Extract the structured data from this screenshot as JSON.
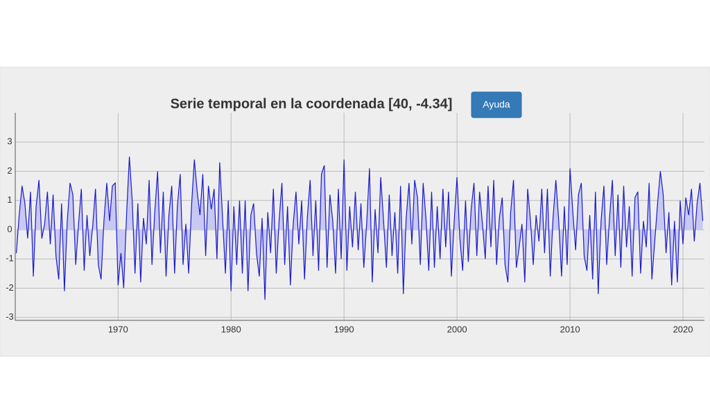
{
  "button": {
    "label": "Ayuda"
  },
  "chart_data": {
    "type": "area",
    "title": "Serie temporal en la coordenada [40, -4.34]",
    "color": "#1a1acc",
    "fill": "#c8c8f4",
    "grid": true,
    "xlim": [
      1960.9,
      2021.9
    ],
    "ylim": [
      -3.1,
      4
    ],
    "xticks": [
      1970,
      1980,
      1990,
      2000,
      2010,
      2020
    ],
    "yticks": [
      -3,
      -2,
      -1,
      0,
      1,
      2,
      3
    ],
    "x": [
      1961,
      1961.25,
      1961.5,
      1961.75,
      1962,
      1962.25,
      1962.5,
      1962.75,
      1963,
      1963.25,
      1963.5,
      1963.75,
      1964,
      1964.25,
      1964.5,
      1964.75,
      1965,
      1965.25,
      1965.5,
      1965.75,
      1966,
      1966.25,
      1966.5,
      1966.75,
      1967,
      1967.25,
      1967.5,
      1967.75,
      1968,
      1968.25,
      1968.5,
      1968.75,
      1969,
      1969.25,
      1969.5,
      1969.75,
      1970,
      1970.25,
      1970.5,
      1970.75,
      1971,
      1971.25,
      1971.5,
      1971.75,
      1972,
      1972.25,
      1972.5,
      1972.75,
      1973,
      1973.25,
      1973.5,
      1973.75,
      1974,
      1974.25,
      1974.5,
      1974.75,
      1975,
      1975.25,
      1975.5,
      1975.75,
      1976,
      1976.25,
      1976.5,
      1976.75,
      1977,
      1977.25,
      1977.5,
      1977.75,
      1978,
      1978.25,
      1978.5,
      1978.75,
      1979,
      1979.25,
      1979.5,
      1979.75,
      1980,
      1980.25,
      1980.5,
      1980.75,
      1981,
      1981.25,
      1981.5,
      1981.75,
      1982,
      1982.25,
      1982.5,
      1982.75,
      1983,
      1983.25,
      1983.5,
      1983.75,
      1984,
      1984.25,
      1984.5,
      1984.75,
      1985,
      1985.25,
      1985.5,
      1985.75,
      1986,
      1986.25,
      1986.5,
      1986.75,
      1987,
      1987.25,
      1987.5,
      1987.75,
      1988,
      1988.25,
      1988.5,
      1988.75,
      1989,
      1989.25,
      1989.5,
      1989.75,
      1990,
      1990.25,
      1990.5,
      1990.75,
      1991,
      1991.25,
      1991.5,
      1991.75,
      1992,
      1992.25,
      1992.5,
      1992.75,
      1993,
      1993.25,
      1993.5,
      1993.75,
      1994,
      1994.25,
      1994.5,
      1994.75,
      1995,
      1995.25,
      1995.5,
      1995.75,
      1996,
      1996.25,
      1996.5,
      1996.75,
      1997,
      1997.25,
      1997.5,
      1997.75,
      1998,
      1998.25,
      1998.5,
      1998.75,
      1999,
      1999.25,
      1999.5,
      1999.75,
      2000,
      2000.25,
      2000.5,
      2000.75,
      2001,
      2001.25,
      2001.5,
      2001.75,
      2002,
      2002.25,
      2002.5,
      2002.75,
      2003,
      2003.25,
      2003.5,
      2003.75,
      2004,
      2004.25,
      2004.5,
      2004.75,
      2005,
      2005.25,
      2005.5,
      2005.75,
      2006,
      2006.25,
      2006.5,
      2006.75,
      2007,
      2007.25,
      2007.5,
      2007.75,
      2008,
      2008.25,
      2008.5,
      2008.75,
      2009,
      2009.25,
      2009.5,
      2009.75,
      2010,
      2010.25,
      2010.5,
      2010.75,
      2011,
      2011.25,
      2011.5,
      2011.75,
      2012,
      2012.25,
      2012.5,
      2012.75,
      2013,
      2013.25,
      2013.5,
      2013.75,
      2014,
      2014.25,
      2014.5,
      2014.75,
      2015,
      2015.25,
      2015.5,
      2015.75,
      2016,
      2016.25,
      2016.5,
      2016.75,
      2017,
      2017.25,
      2017.5,
      2017.75,
      2018,
      2018.25,
      2018.5,
      2018.75,
      2019,
      2019.25,
      2019.5,
      2019.75,
      2020,
      2020.25,
      2020.5,
      2020.75,
      2021,
      2021.25,
      2021.5,
      2021.75
    ],
    "values": [
      -0.8,
      0.5,
      1.5,
      0.9,
      -0.3,
      1.3,
      -1.6,
      0.8,
      1.7,
      -0.3,
      0.2,
      1.3,
      -0.5,
      1.2,
      -0.9,
      -1.7,
      0.9,
      -2.1,
      0.3,
      1.6,
      1.2,
      -1.2,
      0.2,
      1.4,
      -1.4,
      0.5,
      -0.9,
      0.1,
      1.4,
      -1.2,
      -1.7,
      0.3,
      1.6,
      0.3,
      1.5,
      1.6,
      -1.9,
      -0.8,
      -2.0,
      0.5,
      2.5,
      1.0,
      -1.5,
      0.9,
      -1.8,
      0.4,
      -0.5,
      1.7,
      -1.2,
      0.6,
      2.0,
      -0.8,
      1.3,
      -1.6,
      0.5,
      1.5,
      -1.5,
      0.8,
      1.9,
      -1.2,
      0.2,
      -1.5,
      0.8,
      2.4,
      1.3,
      0.5,
      1.9,
      -0.9,
      1.5,
      0.7,
      1.4,
      -1.0,
      2.3,
      0.4,
      -1.5,
      1.0,
      -2.1,
      0.8,
      -1.2,
      1.0,
      -1.5,
      1.0,
      -2.1,
      0.5,
      0.9,
      -0.8,
      -1.6,
      0.4,
      -2.4,
      0.6,
      -0.8,
      1.4,
      -1.5,
      0.3,
      1.6,
      -1.2,
      0.8,
      -1.9,
      0.2,
      1.3,
      -0.5,
      1.0,
      -1.7,
      0.4,
      1.7,
      -0.9,
      1.0,
      -1.4,
      1.9,
      2.2,
      -1.3,
      1.2,
      0.3,
      -1.5,
      1.4,
      -1.0,
      2.4,
      -1.4,
      0.8,
      -0.6,
      1.3,
      -0.7,
      0.9,
      -1.3,
      0.2,
      2.1,
      -1.8,
      0.7,
      -0.8,
      1.8,
      0.3,
      -1.3,
      1.2,
      -0.9,
      0.6,
      -1.5,
      1.5,
      -2.2,
      0.4,
      1.6,
      -0.5,
      1.7,
      1.1,
      -1.2,
      1.6,
      0.4,
      -1.4,
      1.3,
      -1.3,
      0.8,
      -1.0,
      1.4,
      -0.6,
      1.3,
      -1.6,
      0.3,
      1.8,
      -0.3,
      -1.4,
      1.0,
      -1.1,
      0.7,
      1.6,
      -0.9,
      1.3,
      0.2,
      -1.0,
      1.5,
      -0.6,
      1.7,
      -1.2,
      0.4,
      1.1,
      -1.2,
      -1.8,
      0.6,
      1.7,
      -1.3,
      -0.6,
      0.2,
      -1.8,
      1.4,
      0.3,
      -1.2,
      0.5,
      -0.4,
      1.4,
      -0.8,
      1.4,
      -1.6,
      0.4,
      1.7,
      0.3,
      -1.6,
      0.8,
      -1.2,
      2.1,
      0.6,
      -0.7,
      1.2,
      1.6,
      -0.9,
      -1.4,
      0.5,
      -1.7,
      1.3,
      -2.2,
      0.3,
      1.5,
      -1.2,
      0.4,
      1.7,
      -0.9,
      1.2,
      -1.3,
      1.5,
      -0.6,
      0.8,
      -1.6,
      1.1,
      1.3,
      -1.5,
      0.3,
      -0.6,
      1.6,
      -1.7,
      -0.4,
      0.9,
      2.0,
      1.2,
      -0.8,
      0.6,
      -1.9,
      0.3,
      -1.8,
      1.0,
      -0.5,
      1.1,
      0.5,
      1.4,
      -0.4,
      0.9,
      1.6,
      0.3
    ]
  }
}
